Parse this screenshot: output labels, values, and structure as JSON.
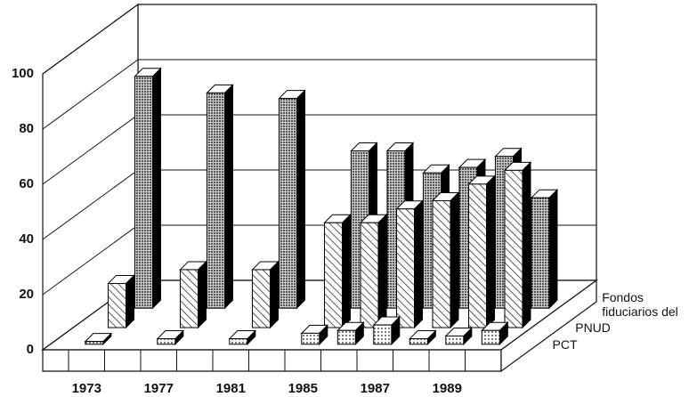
{
  "chart_data": {
    "type": "bar3d",
    "categories": [
      "1973",
      null,
      "1977",
      null,
      "1981",
      null,
      "1985",
      null,
      "1987",
      null,
      "1989",
      null
    ],
    "series": [
      {
        "name": "PCT",
        "values": [
          1,
          null,
          2,
          null,
          2,
          null,
          4,
          5,
          7,
          2,
          3,
          5
        ]
      },
      {
        "name": "PNUD",
        "values": [
          16,
          null,
          21,
          null,
          21,
          null,
          38,
          38,
          43,
          46,
          52,
          57
        ]
      },
      {
        "name": "Fondos fiduciarios del",
        "values": [
          84,
          null,
          78,
          null,
          76,
          null,
          57,
          57,
          49,
          51,
          55,
          40
        ]
      }
    ],
    "ylim": [
      0,
      100
    ],
    "yticks": [
      0,
      20,
      40,
      60,
      80,
      100
    ],
    "grid": true
  }
}
